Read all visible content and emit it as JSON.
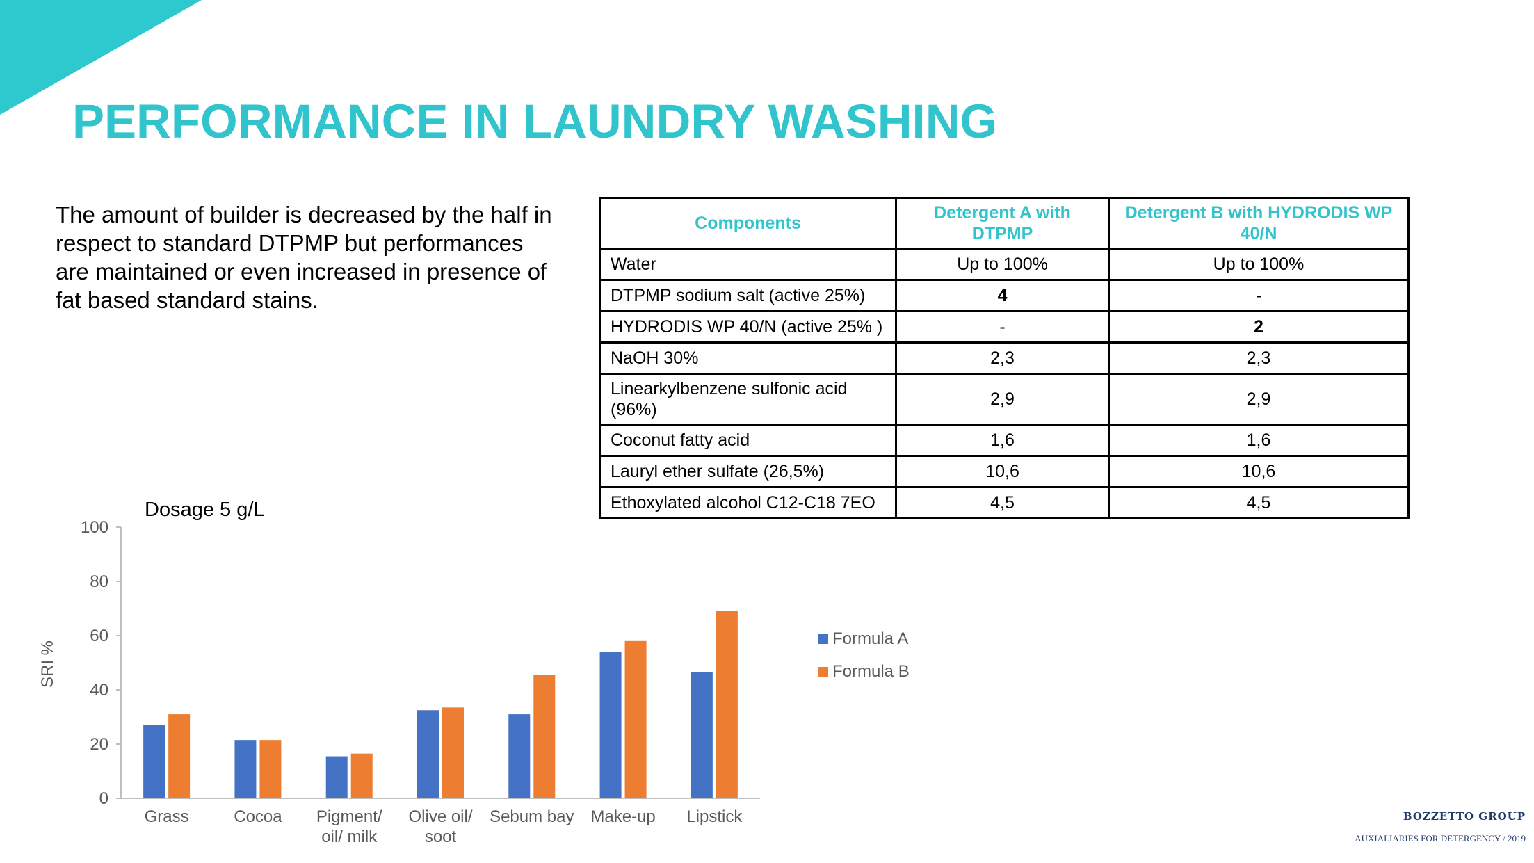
{
  "colors": {
    "accent": "#31c4cc",
    "formula_a": "#4472c4",
    "formula_b": "#ed7d31"
  },
  "slide": {
    "title": "PERFORMANCE IN LAUNDRY WASHING",
    "intro": "The amount of builder is decreased by the half in respect to standard DTPMP but performances are maintained or even increased in presence of fat based standard stains."
  },
  "table": {
    "headers": [
      "Components",
      "Detergent A with DTPMP",
      "Detergent B with HYDRODIS WP 40/N"
    ],
    "rows": [
      [
        "Water",
        "Up to 100%",
        "Up to 100%"
      ],
      [
        "DTPMP sodium salt (active 25%)",
        "4",
        "-"
      ],
      [
        "HYDRODIS WP 40/N (active 25% )",
        "-",
        "2"
      ],
      [
        "NaOH 30%",
        "2,3",
        "2,3"
      ],
      [
        "Linearkylbenzene sulfonic acid (96%)",
        "2,9",
        "2,9"
      ],
      [
        "Coconut fatty acid",
        "1,6",
        "1,6"
      ],
      [
        "Lauryl ether sulfate (26,5%)",
        "10,6",
        "10,6"
      ],
      [
        "Ethoxylated alcohol C12-C18 7EO",
        "4,5",
        "4,5"
      ]
    ]
  },
  "chart_data": {
    "type": "bar",
    "title": "Dosage 5 g/L",
    "xlabel": "",
    "ylabel": "SRI %",
    "ylim": [
      0,
      100
    ],
    "yticks": [
      "0",
      "20",
      "40",
      "60",
      "80",
      "100"
    ],
    "categories": [
      "Grass",
      "Cocoa",
      "Pigment/ oil/ milk",
      "Olive oil/ soot",
      "Sebum bay",
      "Make-up",
      "Lipstick"
    ],
    "series": [
      {
        "name": "Formula A",
        "values": [
          27,
          21.5,
          15.5,
          32.5,
          31,
          54,
          46.5
        ]
      },
      {
        "name": "Formula B",
        "values": [
          31,
          21.5,
          16.5,
          33.5,
          45.5,
          58,
          69
        ]
      }
    ],
    "legend": "right",
    "grid": false
  },
  "footer": {
    "logo": "BOZZETTO GROUP",
    "tagline": "AUXIALIARIES FOR DETERGENCY / 2019"
  }
}
